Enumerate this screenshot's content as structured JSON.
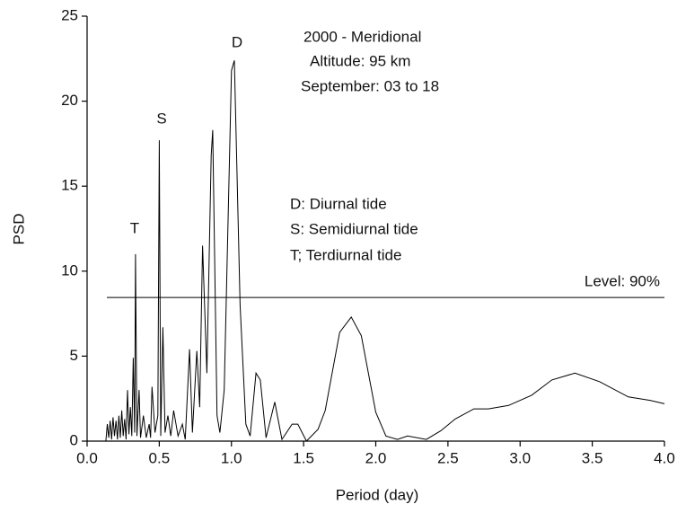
{
  "chart_data": {
    "type": "line",
    "annotations": [
      "2000 - Meridional",
      "Altitude: 95 km",
      "September: 03 to 18",
      "D",
      "S",
      "T",
      "D: Diurnal tide",
      "S: Semidiurnal tide",
      "T; Terdiurnal tide",
      "Level: 90%"
    ],
    "x_label": "Period (day)",
    "y_label": "PSD",
    "threshold": 8.45,
    "xlim": [
      0,
      4
    ],
    "ylim": [
      0,
      25
    ],
    "xticks": [
      {
        "value": 0,
        "label": "0.0"
      },
      {
        "value": 0.5,
        "label": "0.5"
      },
      {
        "value": 1,
        "label": "1.0"
      },
      {
        "value": 1.5,
        "label": "1.5"
      },
      {
        "value": 2,
        "label": "2.0"
      },
      {
        "value": 2.5,
        "label": "2.5"
      },
      {
        "value": 3,
        "label": "3.0"
      },
      {
        "value": 3.5,
        "label": "3.5"
      },
      {
        "value": 4,
        "label": "4.0"
      }
    ],
    "yticks": [
      0,
      5,
      10,
      15,
      20,
      25
    ],
    "series": [
      {
        "color": "#000000",
        "x": [
          0.13,
          0.14,
          0.15,
          0.16,
          0.17,
          0.18,
          0.19,
          0.2,
          0.21,
          0.22,
          0.23,
          0.24,
          0.25,
          0.26,
          0.27,
          0.28,
          0.29,
          0.3,
          0.31,
          0.32,
          0.33,
          0.335,
          0.345,
          0.36,
          0.37,
          0.39,
          0.41,
          0.43,
          0.44,
          0.45,
          0.47,
          0.49,
          0.5,
          0.51,
          0.525,
          0.54,
          0.56,
          0.58,
          0.6,
          0.63,
          0.66,
          0.68,
          0.71,
          0.73,
          0.76,
          0.78,
          0.8,
          0.83,
          0.86,
          0.87,
          0.9,
          0.92,
          0.95,
          1.0,
          1.02,
          1.06,
          1.1,
          1.13,
          1.17,
          1.2,
          1.24,
          1.3,
          1.35,
          1.42,
          1.46,
          1.52,
          1.6,
          1.65,
          1.75,
          1.83,
          1.9,
          2.0,
          2.07,
          2.15,
          2.22,
          2.35,
          2.45,
          2.55,
          2.68,
          2.78,
          2.92,
          3.08,
          3.22,
          3.38,
          3.55,
          3.75,
          3.9,
          4.0
        ],
        "values": [
          0,
          1.0,
          0.2,
          1.2,
          0.1,
          1.4,
          0.3,
          1.2,
          0.1,
          1.5,
          0.2,
          1.8,
          0.3,
          1.3,
          0.1,
          3.0,
          0.4,
          2.0,
          0.3,
          4.9,
          0.5,
          11.0,
          0.3,
          3.0,
          0.2,
          1.5,
          0.2,
          1.0,
          0.2,
          3.2,
          0.5,
          1.5,
          17.7,
          0.3,
          6.7,
          0.5,
          1.5,
          0.3,
          1.8,
          0.3,
          1.0,
          0.1,
          5.4,
          0.5,
          5.3,
          2.0,
          11.5,
          4.0,
          16.8,
          18.3,
          1.5,
          0.5,
          3.0,
          21.8,
          22.4,
          8.0,
          1.0,
          0.3,
          4.0,
          3.6,
          0.2,
          2.3,
          0.1,
          1.0,
          1.0,
          0.0,
          0.7,
          1.8,
          6.4,
          7.3,
          6.2,
          1.7,
          0.3,
          0.1,
          0.3,
          0.1,
          0.6,
          1.3,
          1.9,
          1.9,
          2.1,
          2.7,
          3.6,
          4.0,
          3.5,
          2.6,
          2.4,
          2.2
        ]
      }
    ]
  }
}
